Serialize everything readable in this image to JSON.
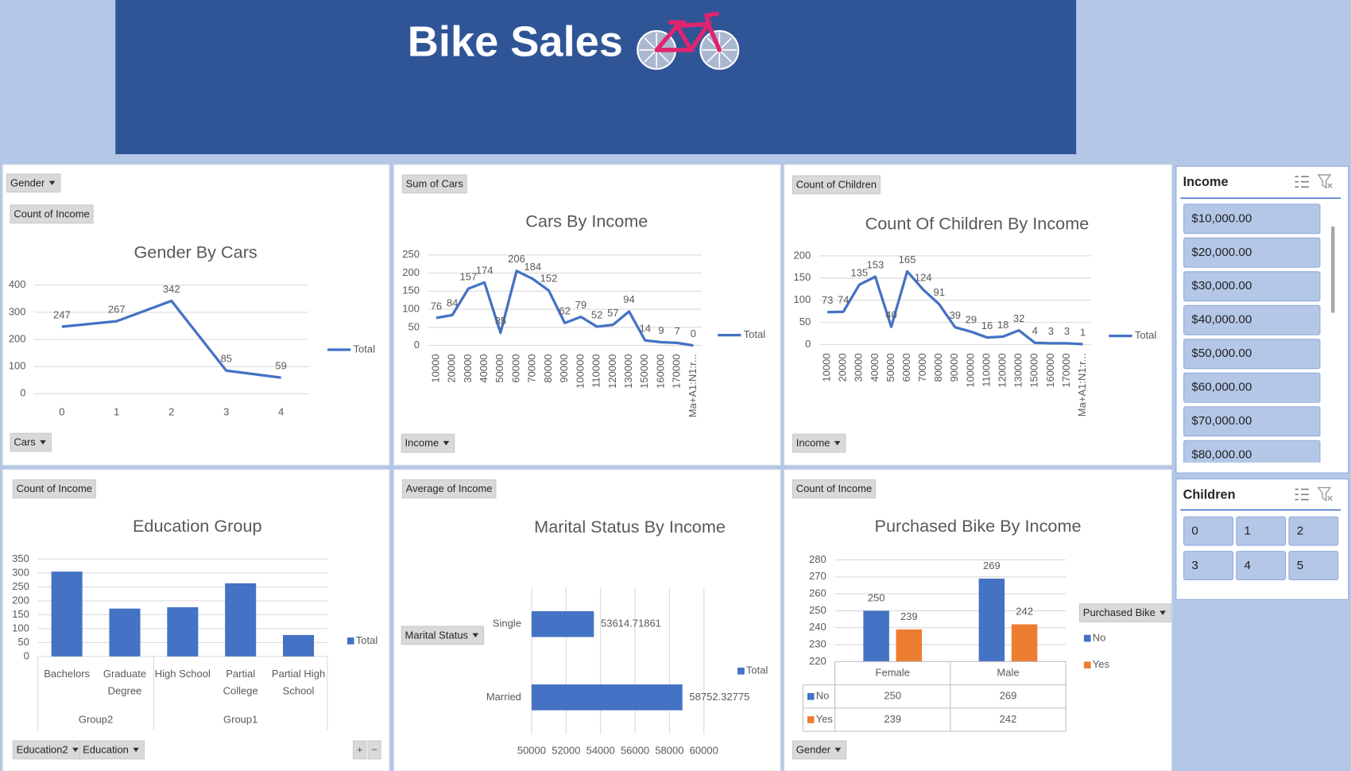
{
  "header": {
    "title": "Bike Sales"
  },
  "chart_data": [
    {
      "type": "line",
      "title": "Gender By Cars",
      "buttons": [
        "Gender",
        "Count of Income",
        "Cars"
      ],
      "categories": [
        "0",
        "1",
        "2",
        "3",
        "4"
      ],
      "series": [
        {
          "name": "Total",
          "color": "#4472c4",
          "values": [
            247,
            267,
            342,
            85,
            59
          ]
        }
      ],
      "ylim": [
        0,
        400
      ],
      "yticks": [
        0,
        100,
        200,
        300,
        400
      ],
      "grid": true,
      "data_labels": true
    },
    {
      "type": "line",
      "title": "Cars By Income",
      "buttons": [
        "Sum of Cars",
        "Income"
      ],
      "categories": [
        "10000",
        "20000",
        "30000",
        "40000",
        "50000",
        "60000",
        "70000",
        "80000",
        "90000",
        "100000",
        "110000",
        "120000",
        "130000",
        "150000",
        "160000",
        "170000",
        "Ma+A1:N1:r..."
      ],
      "series": [
        {
          "name": "Total",
          "color": "#4472c4",
          "values": [
            76,
            84,
            157,
            174,
            35,
            206,
            184,
            152,
            62,
            79,
            52,
            57,
            94,
            14,
            9,
            7,
            0
          ]
        }
      ],
      "ylim": [
        0,
        250
      ],
      "yticks": [
        0,
        50,
        100,
        150,
        200,
        250
      ],
      "grid": true,
      "data_labels": true
    },
    {
      "type": "line",
      "title": "Count Of Children By Income",
      "buttons": [
        "Count of Children",
        "Income"
      ],
      "categories": [
        "10000",
        "20000",
        "30000",
        "40000",
        "50000",
        "60000",
        "70000",
        "80000",
        "90000",
        "100000",
        "110000",
        "120000",
        "130000",
        "150000",
        "160000",
        "170000",
        "Ma+A1:N1:r..."
      ],
      "series": [
        {
          "name": "Total",
          "color": "#4472c4",
          "values": [
            73,
            74,
            135,
            153,
            40,
            165,
            124,
            91,
            39,
            29,
            16,
            18,
            32,
            4,
            3,
            3,
            1
          ]
        }
      ],
      "ylim": [
        0,
        200
      ],
      "yticks": [
        0,
        50,
        100,
        150,
        200
      ],
      "grid": true,
      "data_labels": true
    },
    {
      "type": "bar",
      "title": "Education Group",
      "buttons": [
        "Count of Income",
        "Education2",
        "Education"
      ],
      "expand_buttons": [
        "+",
        "−"
      ],
      "category_groups": [
        {
          "name": "Group2",
          "categories": [
            "Bachelors",
            "Graduate Degree"
          ]
        },
        {
          "name": "Group1",
          "categories": [
            "High School",
            "Partial College",
            "Partial High School"
          ]
        }
      ],
      "series": [
        {
          "name": "Total",
          "color": "#4472c4",
          "values": [
            305,
            172,
            177,
            263,
            77
          ]
        }
      ],
      "ylim": [
        0,
        350
      ],
      "yticks": [
        0,
        50,
        100,
        150,
        200,
        250,
        300,
        350
      ],
      "grid": true
    },
    {
      "type": "hbar",
      "title": "Marital Status By Income",
      "buttons": [
        "Average of Income",
        "Marital Status"
      ],
      "categories": [
        "Single",
        "Married"
      ],
      "series": [
        {
          "name": "Total",
          "color": "#4472c4",
          "values": [
            53614.71861,
            58752.32775
          ]
        }
      ],
      "xlim": [
        50000,
        60000
      ],
      "xticks": [
        50000,
        52000,
        54000,
        56000,
        58000,
        60000
      ],
      "grid": true,
      "data_labels": true
    },
    {
      "type": "grouped_bar",
      "title": "Purchased Bike By Income",
      "buttons": [
        "Count of Income",
        "Gender"
      ],
      "legend_title": "Purchased Bike",
      "categories": [
        "Female",
        "Male"
      ],
      "series": [
        {
          "name": "No",
          "color": "#4472c4",
          "values": [
            250,
            269
          ]
        },
        {
          "name": "Yes",
          "color": "#ed7d31",
          "values": [
            239,
            242
          ]
        }
      ],
      "ylim": [
        220,
        280
      ],
      "yticks": [
        220,
        230,
        240,
        250,
        260,
        270,
        280
      ],
      "grid": true,
      "data_labels": true,
      "data_table": true
    }
  ],
  "slicers": [
    {
      "title": "Income",
      "items": [
        "$10,000.00",
        "$20,000.00",
        "$30,000.00",
        "$40,000.00",
        "$50,000.00",
        "$60,000.00",
        "$70,000.00",
        "$80,000.00"
      ]
    },
    {
      "title": "Children",
      "items": [
        "0",
        "1",
        "2",
        "3",
        "4",
        "5"
      ]
    }
  ]
}
